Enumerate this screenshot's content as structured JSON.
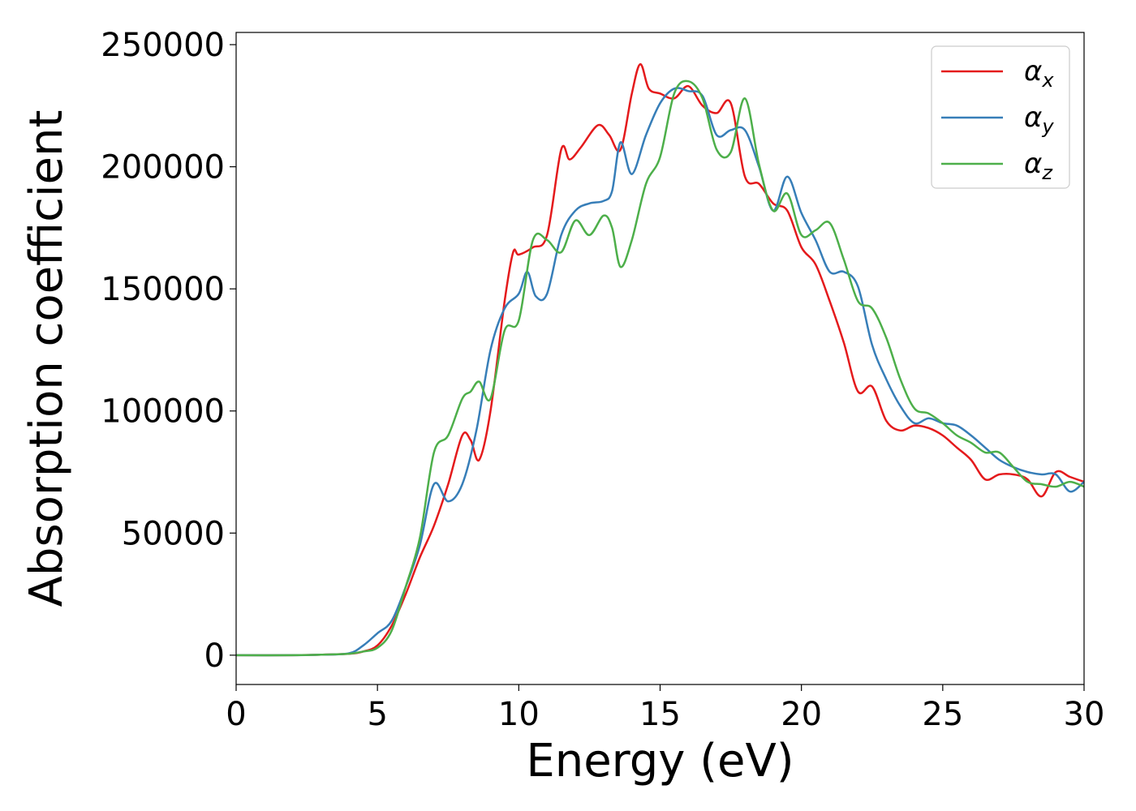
{
  "chart_data": {
    "type": "line",
    "title": "",
    "xlabel": "Energy (eV)",
    "ylabel": "Absorption coefficient",
    "xlim": [
      0,
      30
    ],
    "ylim": [
      -12000,
      255000
    ],
    "xticks": [
      0,
      5,
      10,
      15,
      20,
      25,
      30
    ],
    "xtick_labels": [
      "0",
      "5",
      "10",
      "15",
      "20",
      "25",
      "30"
    ],
    "yticks": [
      0,
      50000,
      100000,
      150000,
      200000,
      250000
    ],
    "ytick_labels": [
      "0",
      "50000",
      "100000",
      "150000",
      "200000",
      "250000"
    ],
    "grid": false,
    "legend_position": "top-right",
    "series": [
      {
        "name": "α",
        "subscript": "x",
        "color": "#e41a1c",
        "x": [
          0,
          2,
          3,
          4,
          4.5,
          5,
          5.5,
          6,
          6.5,
          7,
          7.5,
          8,
          8.3,
          8.6,
          9,
          9.5,
          9.8,
          10,
          10.5,
          11,
          11.5,
          11.8,
          12.2,
          12.8,
          13.2,
          13.6,
          14,
          14.3,
          14.6,
          15,
          15.5,
          16,
          16.5,
          17,
          17.5,
          18,
          18.5,
          19,
          19.5,
          20,
          20.5,
          21,
          21.5,
          22,
          22.5,
          23,
          23.5,
          24,
          24.5,
          25,
          25.5,
          26,
          26.5,
          27,
          27.5,
          28,
          28.5,
          29,
          29.5,
          30
        ],
        "values": [
          0,
          0,
          200,
          600,
          1500,
          4000,
          12000,
          25000,
          40000,
          53000,
          70000,
          90000,
          88000,
          80000,
          100000,
          145000,
          165000,
          164000,
          167000,
          172000,
          207000,
          203000,
          208000,
          217000,
          213000,
          207000,
          230000,
          242000,
          232000,
          230000,
          228000,
          233000,
          225000,
          222000,
          226000,
          196000,
          193000,
          185000,
          182000,
          167000,
          160000,
          145000,
          128000,
          108000,
          110000,
          96000,
          92000,
          94000,
          93000,
          90000,
          85000,
          80000,
          72000,
          74000,
          74000,
          72000,
          65000,
          75000,
          73000,
          71000
        ]
      },
      {
        "name": "α",
        "subscript": "y",
        "color": "#377eb8",
        "x": [
          0,
          2,
          3,
          4,
          4.5,
          5,
          5.5,
          6,
          6.5,
          7,
          7.5,
          8,
          8.5,
          9,
          9.5,
          10,
          10.3,
          10.6,
          11,
          11.5,
          12,
          12.5,
          13,
          13.3,
          13.6,
          14,
          14.5,
          15,
          15.5,
          16,
          16.5,
          17,
          17.5,
          18,
          18.5,
          19,
          19.5,
          20,
          20.5,
          21,
          21.5,
          22,
          22.5,
          23,
          23.5,
          24,
          24.5,
          25,
          25.5,
          26,
          26.5,
          27,
          27.5,
          28,
          28.5,
          29,
          29.5,
          30
        ],
        "values": [
          0,
          0,
          200,
          800,
          4000,
          9000,
          14000,
          28000,
          45000,
          70000,
          63000,
          70000,
          92000,
          125000,
          142000,
          148000,
          157000,
          147000,
          148000,
          172000,
          182000,
          185000,
          186000,
          190000,
          210000,
          197000,
          213000,
          226000,
          232000,
          231000,
          229000,
          213000,
          215000,
          215000,
          200000,
          182000,
          196000,
          181000,
          170000,
          157000,
          157000,
          151000,
          127000,
          113000,
          102000,
          95000,
          97000,
          95000,
          94000,
          90000,
          85000,
          80000,
          77000,
          75000,
          74000,
          74000,
          67000,
          71000
        ]
      },
      {
        "name": "α",
        "subscript": "z",
        "color": "#4daf4a",
        "x": [
          0,
          2,
          3,
          4,
          4.5,
          5,
          5.5,
          6,
          6.5,
          7,
          7.5,
          8,
          8.3,
          8.6,
          9,
          9.5,
          10,
          10.5,
          11,
          11.5,
          12,
          12.5,
          13,
          13.3,
          13.6,
          14,
          14.5,
          15,
          15.5,
          16,
          16.5,
          17,
          17.5,
          18,
          18.5,
          19,
          19.5,
          20,
          20.5,
          21,
          21.5,
          22,
          22.5,
          23,
          23.5,
          24,
          24.5,
          25,
          25.5,
          26,
          26.5,
          27,
          27.5,
          28,
          28.5,
          29,
          29.5,
          30
        ],
        "values": [
          0,
          0,
          200,
          600,
          1500,
          3000,
          10000,
          28000,
          48000,
          83000,
          90000,
          105000,
          108000,
          112000,
          105000,
          133000,
          137000,
          170000,
          170000,
          165000,
          178000,
          172000,
          180000,
          175000,
          159000,
          170000,
          193000,
          204000,
          230000,
          235000,
          228000,
          207000,
          206000,
          228000,
          201000,
          182000,
          189000,
          172000,
          174000,
          177000,
          162000,
          145000,
          142000,
          130000,
          113000,
          101000,
          99000,
          95000,
          90000,
          87000,
          83000,
          83000,
          77000,
          71000,
          70000,
          69000,
          71000,
          69000
        ]
      }
    ]
  }
}
